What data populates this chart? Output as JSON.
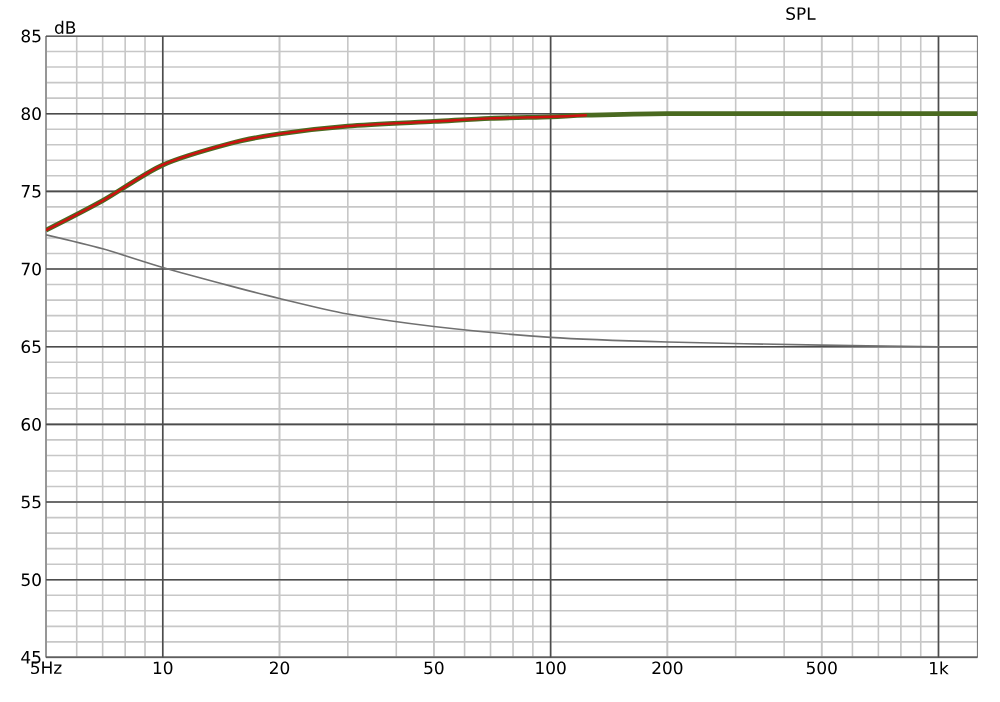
{
  "chart_data": {
    "type": "line",
    "title": "SPL",
    "ylabel": "dB",
    "log": "x",
    "grid": true,
    "xlim": [
      5,
      1260
    ],
    "ylim": [
      45,
      85
    ],
    "xticks": [
      {
        "value": 5,
        "label": "5Hz"
      },
      10,
      20,
      50,
      100,
      200,
      500,
      {
        "value": 1000,
        "label": "1k"
      }
    ],
    "yticks": [
      45,
      50,
      55,
      60,
      65,
      70,
      75,
      80,
      85
    ],
    "series": [
      {
        "color": "#4a6a20",
        "x": [
          5,
          7,
          10,
          15,
          20,
          30,
          50,
          70,
          100,
          124,
          200,
          500,
          1000,
          1260
        ],
        "values": [
          72.5,
          74.4,
          76.7,
          78.1,
          78.7,
          79.2,
          79.5,
          79.7,
          79.8,
          79.9,
          80,
          80,
          80,
          80
        ]
      },
      {
        "color": "#d01010",
        "x": [
          5,
          7,
          10,
          15,
          20,
          30,
          50,
          70,
          100,
          124
        ],
        "values": [
          72.5,
          74.4,
          76.7,
          78.1,
          78.7,
          79.2,
          79.5,
          79.7,
          79.8,
          79.9
        ]
      },
      {
        "color": "#707070",
        "x": [
          5,
          7,
          10,
          15,
          20,
          30,
          50,
          100,
          200,
          500,
          1000,
          1260
        ],
        "values": [
          72.2,
          71.3,
          70.1,
          68.9,
          68.1,
          67.1,
          66.3,
          65.6,
          65.3,
          65.1,
          65,
          65
        ]
      }
    ]
  }
}
